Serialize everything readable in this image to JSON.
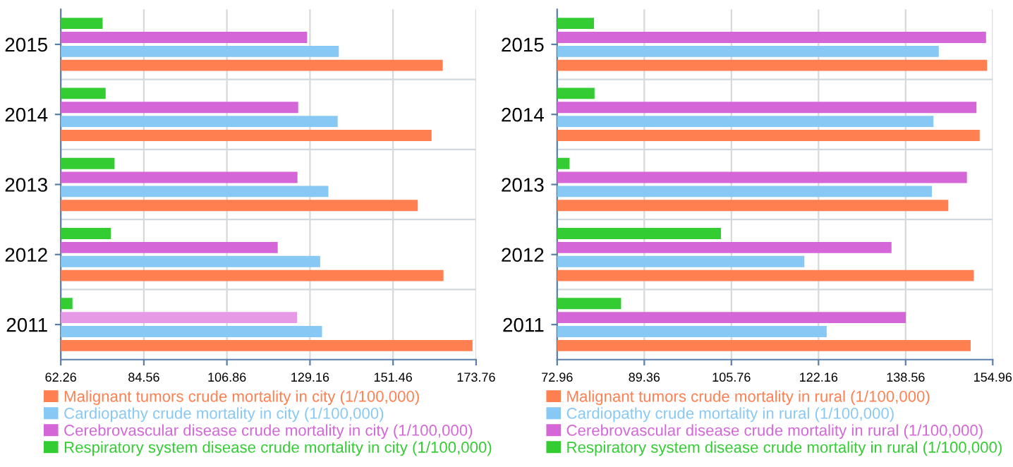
{
  "chart_data": [
    {
      "type": "bar",
      "orientation": "horizontal",
      "categories": [
        "2015",
        "2014",
        "2013",
        "2012",
        "2011"
      ],
      "xlim": [
        62.26,
        173.76
      ],
      "xticks": [
        62.26,
        84.56,
        106.86,
        129.16,
        151.46,
        173.76
      ],
      "grid": "x",
      "legend": "bottom",
      "series": [
        {
          "name": "Malignant tumors crude mortality in city (1/100,000)",
          "color": "#ff7f50",
          "values": [
            164.8,
            161.8,
            158.1,
            165.0,
            172.8
          ]
        },
        {
          "name": "Cardiopathy crude mortality in city (1/100,000)",
          "color": "#87c8f5",
          "values": [
            136.9,
            136.6,
            134.1,
            131.9,
            132.4
          ]
        },
        {
          "name": "Cerebrovascular disease crude mortality in city (1/100,000)",
          "color": "#d466d8",
          "colors": [
            "#d466d8",
            "#d466d8",
            "#d466d8",
            "#d466d8",
            "#e69ae6"
          ],
          "values": [
            128.4,
            126.0,
            125.8,
            120.5,
            125.7
          ]
        },
        {
          "name": "Respiratory system disease crude mortality in city (1/100,000)",
          "color": "#33cc33",
          "values": [
            73.5,
            74.3,
            76.7,
            75.7,
            65.4
          ]
        }
      ]
    },
    {
      "type": "bar",
      "orientation": "horizontal",
      "categories": [
        "2015",
        "2014",
        "2013",
        "2012",
        "2011"
      ],
      "xlim": [
        72.96,
        154.96
      ],
      "xticks": [
        72.96,
        89.36,
        105.76,
        122.16,
        138.56,
        154.96
      ],
      "grid": "x",
      "legend": "bottom",
      "series": [
        {
          "name": "Malignant tumors crude mortality in rural (1/100,000)",
          "color": "#ff7f50",
          "values": [
            153.9,
            152.5,
            146.6,
            151.4,
            150.8
          ]
        },
        {
          "name": "Cardiopathy crude mortality in rural (1/100,000)",
          "color": "#87c8f5",
          "values": [
            144.8,
            143.8,
            143.5,
            119.5,
            123.7
          ]
        },
        {
          "name": "Cerebrovascular disease crude mortality in rural (1/100,000)",
          "color": "#d466d8",
          "values": [
            153.7,
            151.9,
            150.1,
            135.9,
            138.6
          ]
        },
        {
          "name": "Respiratory system disease crude mortality in rural (1/100,000)",
          "color": "#33cc33",
          "values": [
            79.9,
            80.0,
            75.3,
            103.8,
            85.0
          ]
        }
      ]
    }
  ]
}
